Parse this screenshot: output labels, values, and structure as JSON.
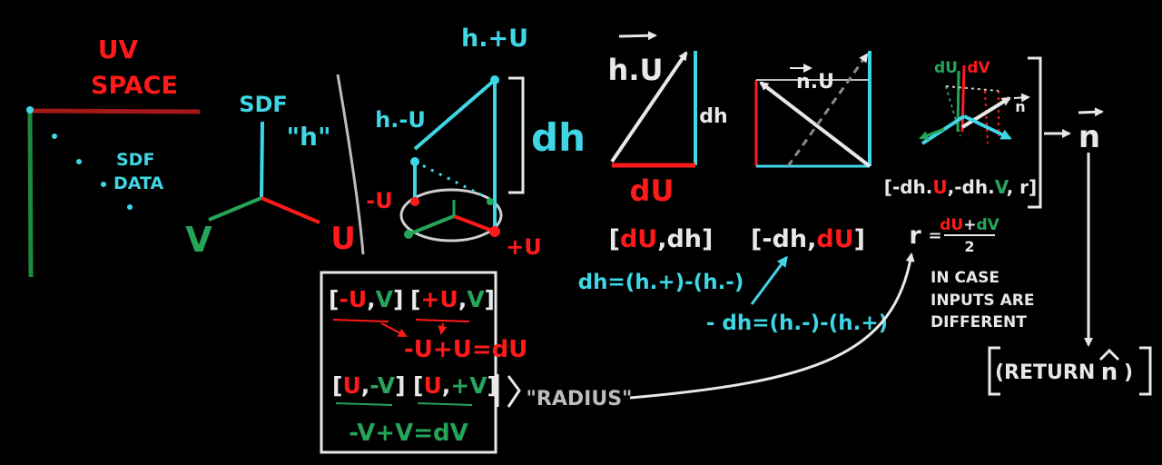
{
  "uv_space": {
    "line1": "UV",
    "line2": "SPACE",
    "sdf": "SDF",
    "data": "DATA"
  },
  "sdf_axes": {
    "sdf": "SDF",
    "h": "\"h\"",
    "v": "V",
    "u": "U"
  },
  "samples": {
    "h_plus_u": "h.+U",
    "h_minus_u": "h.-U",
    "minus_u": "-U",
    "plus_u": "+U",
    "dh": "dh"
  },
  "triangle_hu": {
    "label": "h.U",
    "side": "dh",
    "base": "dU"
  },
  "triangle_nu": {
    "label": "n.U"
  },
  "normal_3d": {
    "du": "dU",
    "dv": "dV",
    "n": "n"
  },
  "vec_du_dh": {
    "open": "[",
    "du": "dU",
    "sep": ",",
    "dh": "dh",
    "close": "]"
  },
  "vec_ndh_du": {
    "open": "[",
    "ndh": "-dh",
    "sep": ",",
    "du": "dU",
    "close": "]"
  },
  "eq_dh": "dh=(h.+)-(h.-)",
  "eq_ndh": "- dh=(h.-)-(h.+)",
  "normal_vec": {
    "open": "[",
    "p1": "-dh.",
    "u": "U",
    "p2": ",-dh.",
    "v": "V",
    "p3": ", r",
    "close": "]"
  },
  "result_n": "n",
  "r_formula": {
    "r": "r",
    "eq": "=",
    "num_du": "dU",
    "plus": "+",
    "num_dv": "dV",
    "den": "2"
  },
  "in_case": [
    "IN CASE",
    "INPUTS ARE",
    "DIFFERENT"
  ],
  "return_n": {
    "open": "(RETURN",
    "n": "n",
    "close": ")"
  },
  "box": {
    "pair1a": {
      "open": "[",
      "a": "-U",
      "sep": ",",
      "b": "V",
      "close": "]"
    },
    "pair1b": {
      "open": "[",
      "a": "+U",
      "sep": ",",
      "b": "V",
      "close": "]"
    },
    "eq_du": {
      "a": "-U",
      "b": "+U",
      "c": "=",
      "d": "dU"
    },
    "pair2a": {
      "open": "[",
      "a": "U",
      "sep": ",",
      "b": "-V",
      "close": "]"
    },
    "pair2b": {
      "open": "[",
      "a": "U",
      "sep": ",",
      "b": "+V",
      "close": "]"
    },
    "radius": "\"RADIUS\"",
    "eq_dv": "-V+V=dV"
  },
  "colors": {
    "background": "#000000",
    "cyan": "#3fd6e6",
    "red": "#ff1a1a",
    "green": "#25a55a",
    "white": "#e8e8e8",
    "gray": "#bdbdbd"
  }
}
